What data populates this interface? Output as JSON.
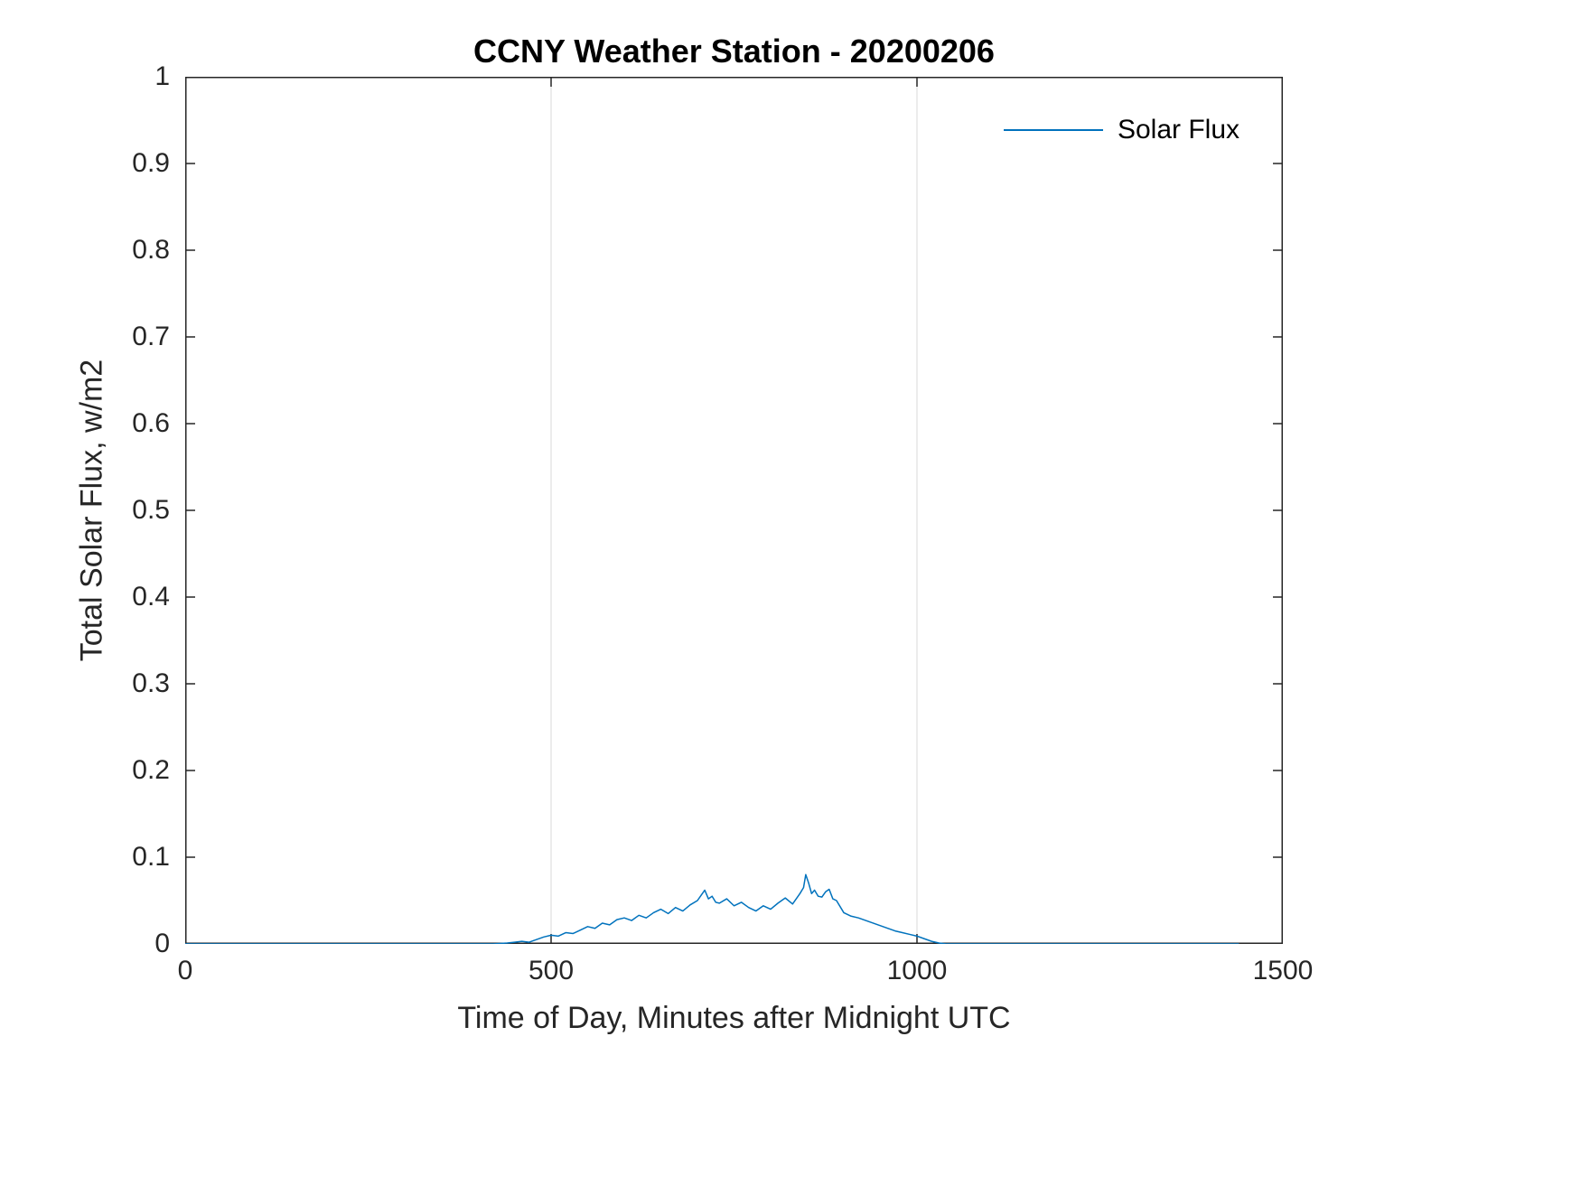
{
  "colors": {
    "line": "#0072BD",
    "axis": "#262626",
    "grid": "#d9d9d9",
    "background": "#ffffff",
    "title": "#000000"
  },
  "legend": {
    "label": "Solar Flux",
    "position": "top-right"
  },
  "chart_data": {
    "type": "line",
    "title": "CCNY Weather Station - 20200206",
    "xlabel": "Time of Day, Minutes after Midnight UTC",
    "ylabel": "Total Solar Flux, w/m2",
    "xlim": [
      0,
      1500
    ],
    "ylim": [
      0,
      1
    ],
    "x_ticks": [
      0,
      500,
      1000,
      1500
    ],
    "x_tick_labels": [
      "0",
      "500",
      "1000",
      "1500"
    ],
    "y_ticks": [
      0,
      0.1,
      0.2,
      0.3,
      0.4,
      0.5,
      0.6,
      0.7,
      0.8,
      0.9,
      1
    ],
    "y_tick_labels": [
      "0",
      "0.1",
      "0.2",
      "0.3",
      "0.4",
      "0.5",
      "0.6",
      "0.7",
      "0.8",
      "0.9",
      "1"
    ],
    "grid": {
      "x": true,
      "y": false
    },
    "legend_position": "top-right",
    "series": [
      {
        "name": "Solar Flux",
        "color": "#0072BD",
        "x": [
          0,
          60,
          120,
          180,
          240,
          300,
          360,
          420,
          440,
          450,
          460,
          470,
          480,
          490,
          500,
          510,
          520,
          530,
          540,
          550,
          560,
          570,
          580,
          590,
          600,
          610,
          620,
          630,
          640,
          650,
          660,
          670,
          680,
          690,
          700,
          705,
          710,
          715,
          720,
          725,
          730,
          740,
          750,
          760,
          770,
          780,
          790,
          800,
          810,
          820,
          830,
          840,
          845,
          848,
          852,
          856,
          860,
          865,
          870,
          875,
          880,
          885,
          890,
          900,
          910,
          920,
          930,
          940,
          950,
          960,
          970,
          980,
          990,
          1000,
          1010,
          1020,
          1030,
          1040,
          1100,
          1160,
          1220,
          1280,
          1340,
          1400,
          1440
        ],
        "y": [
          0,
          0,
          0,
          0,
          0,
          0,
          0,
          0,
          0.001,
          0.002,
          0.003,
          0.002,
          0.005,
          0.008,
          0.01,
          0.009,
          0.013,
          0.012,
          0.016,
          0.02,
          0.018,
          0.024,
          0.022,
          0.028,
          0.03,
          0.027,
          0.033,
          0.03,
          0.036,
          0.04,
          0.035,
          0.042,
          0.038,
          0.045,
          0.05,
          0.056,
          0.062,
          0.052,
          0.055,
          0.048,
          0.047,
          0.052,
          0.044,
          0.048,
          0.042,
          0.038,
          0.044,
          0.04,
          0.047,
          0.053,
          0.046,
          0.058,
          0.065,
          0.08,
          0.07,
          0.058,
          0.062,
          0.055,
          0.054,
          0.06,
          0.063,
          0.052,
          0.05,
          0.036,
          0.032,
          0.03,
          0.027,
          0.024,
          0.021,
          0.018,
          0.015,
          0.013,
          0.011,
          0.009,
          0.006,
          0.003,
          0.001,
          0,
          0,
          0,
          0,
          0,
          0,
          0,
          0
        ]
      }
    ]
  }
}
